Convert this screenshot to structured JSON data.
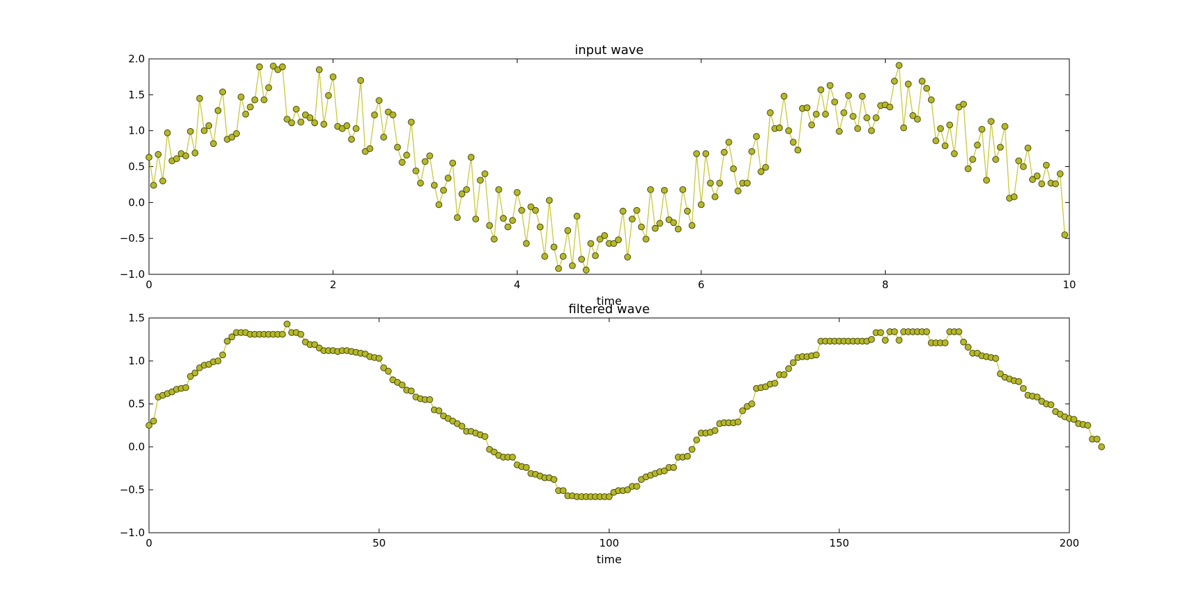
{
  "figure": {
    "background": "#ffffff"
  },
  "style": {
    "line_color": "#c8c83a",
    "marker_face": "#b5b82a",
    "marker_edge": "#3a3a00"
  },
  "chart_data": [
    {
      "type": "line",
      "title": "input wave",
      "xlabel": "time",
      "ylabel": "",
      "xlim": [
        0,
        10
      ],
      "ylim": [
        -1.0,
        2.0
      ],
      "xticks": [
        "0",
        "2",
        "4",
        "6",
        "8",
        "10"
      ],
      "yticks": [
        "−1.0",
        "−0.5",
        "0.0",
        "0.5",
        "1.0",
        "1.5",
        "2.0"
      ],
      "grid": false,
      "marker": "circle",
      "x_start": 0,
      "x_step": 0.05,
      "y": [
        0.63,
        0.24,
        0.67,
        0.3,
        0.97,
        0.58,
        0.61,
        0.68,
        0.65,
        0.99,
        0.69,
        1.45,
        1.0,
        1.07,
        0.82,
        1.28,
        1.54,
        0.88,
        0.91,
        0.96,
        1.47,
        1.23,
        1.33,
        1.43,
        1.89,
        1.43,
        1.6,
        1.9,
        1.85,
        1.89,
        1.16,
        1.11,
        1.3,
        1.12,
        1.22,
        1.18,
        1.11,
        1.85,
        1.09,
        1.49,
        1.75,
        1.06,
        1.03,
        1.07,
        0.88,
        1.03,
        1.7,
        0.71,
        0.75,
        1.22,
        1.42,
        0.91,
        1.26,
        1.22,
        0.77,
        0.56,
        0.66,
        1.12,
        0.44,
        0.27,
        0.57,
        0.65,
        0.24,
        -0.03,
        0.17,
        0.34,
        0.55,
        -0.21,
        0.12,
        0.18,
        0.63,
        -0.23,
        0.31,
        0.4,
        -0.32,
        -0.51,
        0.18,
        -0.22,
        -0.34,
        -0.25,
        0.14,
        -0.11,
        -0.57,
        -0.06,
        -0.11,
        -0.34,
        -0.75,
        0.03,
        -0.62,
        -0.92,
        -0.75,
        -0.39,
        -0.88,
        -0.19,
        -0.79,
        -0.94,
        -0.57,
        -0.74,
        -0.51,
        -0.46,
        -0.57,
        -0.57,
        -0.52,
        -0.12,
        -0.76,
        -0.23,
        -0.11,
        -0.34,
        -0.51,
        0.18,
        -0.36,
        -0.29,
        0.17,
        -0.24,
        -0.28,
        -0.37,
        0.18,
        -0.12,
        -0.32,
        0.68,
        -0.03,
        0.68,
        0.27,
        0.08,
        0.27,
        0.7,
        0.84,
        0.47,
        0.16,
        0.27,
        0.27,
        0.71,
        0.92,
        0.43,
        0.49,
        1.25,
        1.03,
        1.04,
        1.48,
        1.0,
        0.84,
        0.73,
        1.31,
        1.32,
        1.08,
        1.23,
        1.57,
        1.23,
        1.63,
        1.4,
        0.99,
        1.25,
        1.49,
        1.2,
        1.03,
        1.48,
        1.18,
        1.0,
        1.18,
        1.35,
        1.36,
        1.33,
        1.69,
        1.91,
        1.04,
        1.65,
        1.21,
        1.16,
        1.69,
        1.59,
        1.43,
        0.86,
        1.03,
        0.79,
        1.08,
        0.68,
        1.33,
        1.37,
        0.47,
        0.6,
        0.8,
        1.02,
        0.31,
        1.13,
        0.6,
        0.77,
        1.06,
        0.06,
        0.08,
        0.58,
        0.5,
        0.76,
        0.32,
        0.37,
        0.26,
        0.52,
        0.27,
        0.26,
        0.4,
        -0.45
      ]
    },
    {
      "type": "line",
      "title": "filtered wave",
      "xlabel": "time",
      "ylabel": "",
      "xlim": [
        0,
        200
      ],
      "ylim": [
        -1.0,
        1.5
      ],
      "xticks": [
        "0",
        "50",
        "100",
        "150",
        "200"
      ],
      "yticks": [
        "−1.0",
        "−0.5",
        "0.0",
        "0.5",
        "1.0",
        "1.5"
      ],
      "grid": false,
      "marker": "circle",
      "x_start": 0,
      "x_step": 1,
      "y": [
        0.25,
        0.3,
        0.58,
        0.6,
        0.62,
        0.64,
        0.67,
        0.68,
        0.69,
        0.82,
        0.86,
        0.92,
        0.95,
        0.96,
        0.99,
        1.0,
        1.07,
        1.23,
        1.28,
        1.33,
        1.33,
        1.33,
        1.31,
        1.31,
        1.31,
        1.31,
        1.31,
        1.31,
        1.31,
        1.31,
        1.43,
        1.33,
        1.33,
        1.31,
        1.22,
        1.19,
        1.19,
        1.15,
        1.12,
        1.12,
        1.12,
        1.11,
        1.12,
        1.12,
        1.11,
        1.1,
        1.09,
        1.08,
        1.05,
        1.04,
        1.03,
        0.92,
        0.88,
        0.78,
        0.75,
        0.72,
        0.66,
        0.65,
        0.58,
        0.56,
        0.55,
        0.55,
        0.43,
        0.42,
        0.36,
        0.33,
        0.3,
        0.27,
        0.24,
        0.18,
        0.18,
        0.16,
        0.14,
        0.12,
        -0.03,
        -0.06,
        -0.1,
        -0.12,
        -0.12,
        -0.12,
        -0.21,
        -0.23,
        -0.24,
        -0.31,
        -0.32,
        -0.34,
        -0.36,
        -0.36,
        -0.38,
        -0.51,
        -0.51,
        -0.57,
        -0.57,
        -0.58,
        -0.58,
        -0.58,
        -0.58,
        -0.58,
        -0.58,
        -0.58,
        -0.58,
        -0.53,
        -0.51,
        -0.51,
        -0.5,
        -0.46,
        -0.46,
        -0.38,
        -0.35,
        -0.33,
        -0.31,
        -0.29,
        -0.28,
        -0.24,
        -0.24,
        -0.12,
        -0.12,
        -0.11,
        -0.03,
        0.08,
        0.16,
        0.16,
        0.17,
        0.19,
        0.27,
        0.28,
        0.28,
        0.28,
        0.29,
        0.42,
        0.47,
        0.5,
        0.68,
        0.69,
        0.7,
        0.73,
        0.74,
        0.84,
        0.84,
        0.91,
        0.98,
        1.04,
        1.05,
        1.05,
        1.06,
        1.07,
        1.23,
        1.23,
        1.23,
        1.23,
        1.23,
        1.23,
        1.23,
        1.23,
        1.23,
        1.23,
        1.23,
        1.25,
        1.33,
        1.33,
        1.24,
        1.34,
        1.34,
        1.24,
        1.34,
        1.34,
        1.34,
        1.34,
        1.34,
        1.34,
        1.21,
        1.21,
        1.21,
        1.21,
        1.34,
        1.34,
        1.34,
        1.22,
        1.16,
        1.09,
        1.09,
        1.06,
        1.05,
        1.04,
        1.03,
        0.85,
        0.81,
        0.79,
        0.77,
        0.76,
        0.68,
        0.6,
        0.59,
        0.58,
        0.53,
        0.5,
        0.49,
        0.41,
        0.38,
        0.35,
        0.33,
        0.32,
        0.27,
        0.26,
        0.25,
        0.09,
        0.09,
        0.0
      ]
    }
  ]
}
